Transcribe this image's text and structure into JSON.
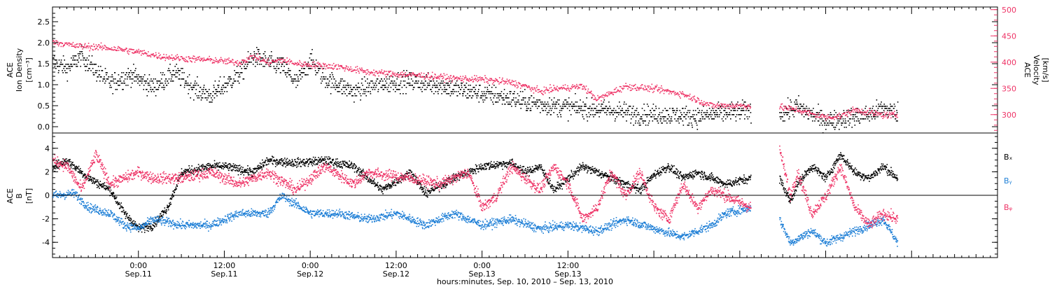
{
  "chart_data": [
    {
      "type": "scatter",
      "panel": "top",
      "ylabel_left": [
        "ACE",
        "Ion Density",
        "[cm⁻³]"
      ],
      "ylabel_right": [
        "ACE",
        "Velocity",
        "[km/s]"
      ],
      "ylim_left": [
        -0.15,
        2.85
      ],
      "ylim_right": [
        265,
        505
      ],
      "yticks_left": [
        0.0,
        0.5,
        1.0,
        1.5,
        2.0,
        2.5
      ],
      "ytick_labels_left": [
        "0.0",
        "0.5",
        "1.0",
        "1.5",
        "2.0",
        "2.5"
      ],
      "yticks_right": [
        300,
        350,
        400,
        450,
        500
      ],
      "ytick_labels_right": [
        "300",
        "350",
        "400",
        "450",
        "500"
      ],
      "series": [
        {
          "axis": "left",
          "color": "#000000",
          "segments": [
            {
              "hours": [
                0,
                2,
                4,
                6,
                8,
                11,
                14,
                17,
                20,
                22,
                26,
                28,
                30,
                32,
                34,
                36,
                38,
                42,
                46,
                50,
                54,
                58,
                62,
                66,
                70,
                74,
                78,
                82,
                86,
                90,
                94,
                97.5
              ],
              "values": [
                1.55,
                1.4,
                1.7,
                1.35,
                1.05,
                1.25,
                0.95,
                1.3,
                0.9,
                0.75,
                1.25,
                1.7,
                1.55,
                1.45,
                1.05,
                1.6,
                1.15,
                0.85,
                1.05,
                1.1,
                1.0,
                0.85,
                0.75,
                0.6,
                0.5,
                0.45,
                0.4,
                0.3,
                0.3,
                0.25,
                0.35,
                0.4
              ]
            },
            {
              "hours": [
                101.5,
                104,
                106,
                108,
                110,
                112,
                114,
                116,
                118
              ],
              "values": [
                0.3,
                0.5,
                0.3,
                0.15,
                0.2,
                0.25,
                0.3,
                0.45,
                0.35
              ]
            }
          ]
        },
        {
          "axis": "right",
          "color": "#ee3366",
          "segments": [
            {
              "hours": [
                0,
                3,
                6,
                9,
                12,
                15,
                18,
                22,
                26,
                28,
                30,
                32,
                34,
                36,
                40,
                44,
                48,
                52,
                56,
                60,
                64,
                66,
                68,
                70,
                74,
                76,
                80,
                84,
                88,
                92,
                97.5
              ],
              "values": [
                440,
                432,
                430,
                426,
                420,
                412,
                408,
                405,
                400,
                412,
                400,
                405,
                398,
                396,
                392,
                382,
                378,
                375,
                370,
                368,
                362,
                355,
                345,
                350,
                355,
                330,
                355,
                350,
                340,
                318,
                318
              ]
            },
            {
              "hours": [
                101.5,
                104,
                106,
                108,
                110,
                112,
                114,
                116,
                118
              ],
              "values": [
                315,
                310,
                302,
                296,
                298,
                310,
                305,
                300,
                300
              ]
            }
          ]
        }
      ]
    },
    {
      "type": "scatter",
      "panel": "bottom",
      "ylabel_left": [
        "ACE",
        "B",
        "[nT]"
      ],
      "ylim": [
        -5.3,
        5.3
      ],
      "yticks": [
        -4,
        -2,
        0,
        2,
        4
      ],
      "ytick_labels": [
        "-4",
        "-2",
        "0",
        "2",
        "4"
      ],
      "zero_line": true,
      "series": [
        {
          "name": "Bₓ",
          "color": "#000000",
          "segments": [
            {
              "hours": [
                0,
                2,
                3,
                5,
                8,
                10,
                12,
                14,
                16,
                18,
                22,
                24,
                28,
                30,
                34,
                38,
                42,
                46,
                50,
                52,
                56,
                60,
                64,
                66,
                68,
                70,
                74,
                78,
                82,
                84,
                86,
                88,
                90,
                92,
                94,
                97.5
              ],
              "values": [
                2.5,
                3.0,
                2.5,
                1.5,
                0.5,
                -1.5,
                -2.8,
                -2.5,
                -1.0,
                2.0,
                2.5,
                2.5,
                2.0,
                3.0,
                2.8,
                3.0,
                2.5,
                0.5,
                2.0,
                0.2,
                1.5,
                2.5,
                2.8,
                2.0,
                2.5,
                0.5,
                2.5,
                1.5,
                0.5,
                1.8,
                2.5,
                1.5,
                2.0,
                1.5,
                1.0,
                1.5
              ]
            },
            {
              "hours": [
                101.5,
                103,
                104,
                106,
                108,
                110,
                112,
                114,
                116,
                118
              ],
              "values": [
                1.5,
                -0.5,
                1.0,
                2.5,
                1.5,
                3.5,
                2.0,
                1.5,
                2.5,
                1.5
              ]
            }
          ]
        },
        {
          "name": "Bᵧ",
          "color": "#1e7fd6",
          "segments": [
            {
              "hours": [
                0,
                3,
                5,
                8,
                10,
                12,
                14,
                18,
                22,
                26,
                30,
                32,
                36,
                40,
                44,
                48,
                52,
                56,
                60,
                64,
                68,
                72,
                76,
                80,
                84,
                88,
                92,
                94,
                97.5
              ],
              "values": [
                0.0,
                0.2,
                -1.0,
                -1.5,
                -2.5,
                -2.8,
                -2.0,
                -2.5,
                -2.5,
                -1.5,
                -1.5,
                0.0,
                -1.5,
                -1.5,
                -2.0,
                -1.5,
                -2.5,
                -1.5,
                -2.5,
                -2.0,
                -2.8,
                -2.5,
                -3.0,
                -2.0,
                -2.8,
                -3.5,
                -2.5,
                -1.5,
                -1.0
              ]
            },
            {
              "hours": [
                101.5,
                103,
                106,
                108,
                110,
                112,
                114,
                116,
                118
              ],
              "values": [
                -2.0,
                -4.0,
                -3.0,
                -4.0,
                -3.5,
                -3.0,
                -2.5,
                -2.0,
                -4.0
              ]
            }
          ]
        },
        {
          "name": "Bᵩ",
          "color": "#ee3366",
          "segments": [
            {
              "hours": [
                0,
                2,
                4,
                6,
                8,
                10,
                12,
                14,
                18,
                22,
                26,
                30,
                34,
                38,
                42,
                44,
                46,
                50,
                54,
                58,
                60,
                62,
                64,
                66,
                68,
                70,
                72,
                74,
                76,
                78,
                80,
                82,
                84,
                86,
                88,
                90,
                92,
                94,
                97.5
              ],
              "values": [
                3.0,
                2.5,
                0.5,
                3.5,
                1.0,
                1.5,
                2.0,
                1.5,
                1.5,
                2.0,
                1.0,
                2.0,
                0.5,
                2.5,
                1.0,
                2.0,
                1.8,
                1.5,
                1.0,
                2.0,
                -1.0,
                0.0,
                2.5,
                1.5,
                0.5,
                2.5,
                1.0,
                -2.0,
                -1.0,
                2.0,
                0.0,
                2.0,
                -1.0,
                -2.0,
                1.0,
                -1.0,
                0.5,
                0.0,
                -1.0
              ]
            },
            {
              "hours": [
                101.5,
                103,
                104,
                106,
                108,
                110,
                112,
                114,
                116,
                118
              ],
              "values": [
                4.0,
                0.0,
                2.0,
                -1.5,
                0.0,
                2.5,
                -1.0,
                -2.5,
                -1.5,
                -2.0
              ]
            }
          ]
        }
      ]
    }
  ],
  "x_axis": {
    "title": "hours:minutes, Sep. 10, 2010 – Sep. 13, 2010",
    "ticks": [
      {
        "hour": 12,
        "time": "0:00",
        "date": "Sep.11"
      },
      {
        "hour": 24,
        "time": "12:00",
        "date": "Sep.11"
      },
      {
        "hour": 36,
        "time": "0:00",
        "date": "Sep.12"
      },
      {
        "hour": 48,
        "time": "12:00",
        "date": "Sep.12"
      },
      {
        "hour": 60,
        "time": "0:00",
        "date": "Sep.13"
      },
      {
        "hour": 72,
        "time": "12:00",
        "date": "Sep.13"
      }
    ],
    "xlim_hours": [
      0,
      132
    ]
  }
}
